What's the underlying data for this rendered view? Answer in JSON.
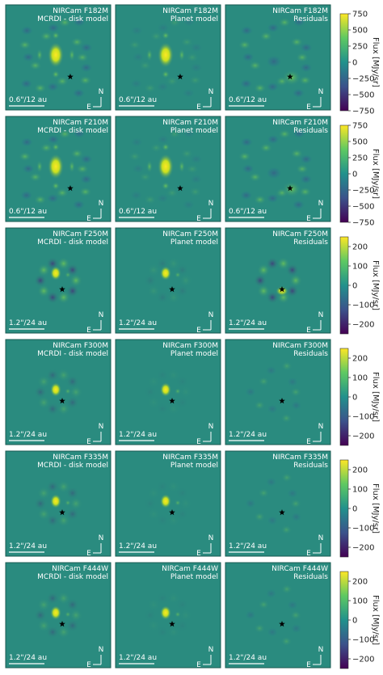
{
  "colors": {
    "panel_background": "#2a8b7f",
    "panel_border": "#1a5a52",
    "text": "#ffffff",
    "star": "#000000",
    "colormap": [
      "#440154",
      "#3b528b",
      "#21918c",
      "#5ec962",
      "#fde725"
    ]
  },
  "column_subtitles": [
    "MCRDI - disk model",
    "Planet model",
    "Residuals"
  ],
  "compass": {
    "north": "N",
    "east": "E"
  },
  "rows": [
    {
      "filter": "NIRCam F182M",
      "scale_label": "0.6\"/12 au",
      "colorbar": {
        "label": "Flux [MJy/sr]",
        "ticks": [
          "750",
          "500",
          "250",
          "0",
          "−250",
          "−500",
          "−750"
        ]
      }
    },
    {
      "filter": "NIRCam F210M",
      "scale_label": "0.6\"/12 au",
      "colorbar": {
        "label": "Flux [MJy/sr]",
        "ticks": [
          "750",
          "500",
          "250",
          "0",
          "−250",
          "−500",
          "−750"
        ]
      }
    },
    {
      "filter": "NIRCam F250M",
      "scale_label": "1.2\"/24 au",
      "colorbar": {
        "label": "Flux [MJy/sr]",
        "ticks": [
          "200",
          "100",
          "0",
          "−100",
          "−200"
        ]
      }
    },
    {
      "filter": "NIRCam F300M",
      "scale_label": "1.2\"/24 au",
      "colorbar": {
        "label": "Flux [MJy/sr]",
        "ticks": [
          "200",
          "100",
          "0",
          "−100",
          "−200"
        ]
      }
    },
    {
      "filter": "NIRCam F335M",
      "scale_label": "1.2\"/24 au",
      "colorbar": {
        "label": "Flux [MJy/sr]",
        "ticks": [
          "200",
          "100",
          "0",
          "−100",
          "−200"
        ]
      }
    },
    {
      "filter": "NIRCam F444W",
      "scale_label": "1.2\"/24 au",
      "colorbar": {
        "label": "Flux [MJy/sr]",
        "ticks": [
          "200",
          "100",
          "0",
          "−100",
          "−200"
        ]
      }
    }
  ]
}
